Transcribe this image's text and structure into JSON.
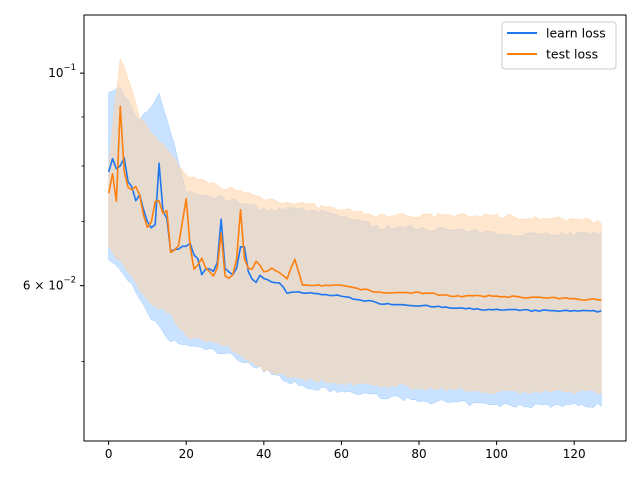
{
  "chart_data": {
    "type": "line",
    "title": "",
    "xlabel": "",
    "ylabel": "",
    "xlim": [
      -6.35,
      133.35
    ],
    "ylim": [
      0.0413,
      0.115
    ],
    "yscale": "log",
    "x_ticks": [
      0,
      20,
      40,
      60,
      80,
      100,
      120
    ],
    "x_tick_labels": [
      "0",
      "20",
      "40",
      "60",
      "80",
      "100",
      "120"
    ],
    "y_major_ticks": [
      0.1,
      0.06
    ],
    "y_major_tick_labels": [
      "10",
      "6 × 10"
    ],
    "y_major_tick_exponents": [
      "−1",
      "−2"
    ],
    "y_minor_ticks": [
      0.05,
      0.07,
      0.08,
      0.09
    ],
    "grid": false,
    "legend_position": "top-right",
    "x_points": 128,
    "series": [
      {
        "name": "learn loss",
        "color": "#1f77f0",
        "band_color": "#9ccbff",
        "mean_keypoints": [
          [
            0,
            0.079
          ],
          [
            1,
            0.0815
          ],
          [
            2,
            0.0795
          ],
          [
            3,
            0.08
          ],
          [
            4,
            0.0815
          ],
          [
            5,
            0.077
          ],
          [
            6,
            0.076
          ],
          [
            7,
            0.0735
          ],
          [
            8,
            0.0745
          ],
          [
            9,
            0.072
          ],
          [
            10,
            0.07
          ],
          [
            11,
            0.069
          ],
          [
            12,
            0.0695
          ],
          [
            13,
            0.0805
          ],
          [
            14,
            0.072
          ],
          [
            15,
            0.0705
          ],
          [
            16,
            0.065
          ],
          [
            17,
            0.0655
          ],
          [
            18,
            0.0655
          ],
          [
            19,
            0.066
          ],
          [
            20,
            0.066
          ],
          [
            21,
            0.0665
          ],
          [
            22,
            0.0645
          ],
          [
            23,
            0.064
          ],
          [
            24,
            0.0615
          ],
          [
            25,
            0.0625
          ],
          [
            26,
            0.0625
          ],
          [
            27,
            0.062
          ],
          [
            28,
            0.0635
          ],
          [
            29,
            0.0705
          ],
          [
            30,
            0.0625
          ],
          [
            31,
            0.062
          ],
          [
            32,
            0.0615
          ],
          [
            33,
            0.0625
          ],
          [
            34,
            0.066
          ],
          [
            35,
            0.066
          ],
          [
            36,
            0.062
          ],
          [
            37,
            0.061
          ],
          [
            38,
            0.0605
          ],
          [
            39,
            0.0615
          ],
          [
            40,
            0.061
          ],
          [
            42,
            0.0605
          ],
          [
            44,
            0.0605
          ],
          [
            46,
            0.059
          ],
          [
            50,
            0.059
          ],
          [
            60,
            0.0585
          ],
          [
            70,
            0.0575
          ],
          [
            80,
            0.0572
          ],
          [
            90,
            0.0568
          ],
          [
            100,
            0.0566
          ],
          [
            110,
            0.0565
          ],
          [
            127,
            0.0564
          ]
        ],
        "mean_noise": 0.004,
        "band_upper_keypoints": [
          [
            0,
            0.095
          ],
          [
            3,
            0.0965
          ],
          [
            8,
            0.089
          ],
          [
            13,
            0.095
          ],
          [
            16,
            0.087
          ],
          [
            20,
            0.075
          ],
          [
            30,
            0.074
          ],
          [
            40,
            0.072
          ],
          [
            50,
            0.072
          ],
          [
            60,
            0.071
          ],
          [
            70,
            0.069
          ],
          [
            80,
            0.069
          ],
          [
            100,
            0.068
          ],
          [
            127,
            0.068
          ]
        ],
        "band_lower_keypoints": [
          [
            0,
            0.064
          ],
          [
            5,
            0.061
          ],
          [
            10,
            0.056
          ],
          [
            16,
            0.0525
          ],
          [
            20,
            0.052
          ],
          [
            30,
            0.051
          ],
          [
            40,
            0.049
          ],
          [
            50,
            0.047
          ],
          [
            60,
            0.0465
          ],
          [
            80,
            0.0455
          ],
          [
            100,
            0.045
          ],
          [
            127,
            0.045
          ]
        ],
        "band_noise": 0.012
      },
      {
        "name": "test loss",
        "color": "#ff7f0e",
        "band_color": "#ffd3a8",
        "mean_keypoints": [
          [
            0,
            0.075
          ],
          [
            1,
            0.0785
          ],
          [
            2,
            0.0735
          ],
          [
            3,
            0.0925
          ],
          [
            4,
            0.079
          ],
          [
            5,
            0.076
          ],
          [
            6,
            0.0755
          ],
          [
            7,
            0.076
          ],
          [
            8,
            0.0745
          ],
          [
            9,
            0.071
          ],
          [
            10,
            0.069
          ],
          [
            11,
            0.07
          ],
          [
            12,
            0.0735
          ],
          [
            13,
            0.0735
          ],
          [
            14,
            0.0715
          ],
          [
            15,
            0.072
          ],
          [
            16,
            0.065
          ],
          [
            17,
            0.0655
          ],
          [
            18,
            0.066
          ],
          [
            19,
            0.07
          ],
          [
            20,
            0.074
          ],
          [
            21,
            0.066
          ],
          [
            22,
            0.0625
          ],
          [
            23,
            0.063
          ],
          [
            24,
            0.064
          ],
          [
            25,
            0.0625
          ],
          [
            26,
            0.062
          ],
          [
            27,
            0.0615
          ],
          [
            28,
            0.0625
          ],
          [
            29,
            0.068
          ],
          [
            30,
            0.0615
          ],
          [
            31,
            0.061
          ],
          [
            32,
            0.0615
          ],
          [
            33,
            0.064
          ],
          [
            34,
            0.072
          ],
          [
            35,
            0.064
          ],
          [
            36,
            0.0625
          ],
          [
            37,
            0.0625
          ],
          [
            38,
            0.0635
          ],
          [
            39,
            0.063
          ],
          [
            40,
            0.062
          ],
          [
            42,
            0.0625
          ],
          [
            44,
            0.062
          ],
          [
            46,
            0.061
          ],
          [
            48,
            0.064
          ],
          [
            50,
            0.06
          ],
          [
            60,
            0.06
          ],
          [
            70,
            0.059
          ],
          [
            80,
            0.059
          ],
          [
            90,
            0.0585
          ],
          [
            100,
            0.0585
          ],
          [
            110,
            0.0583
          ],
          [
            127,
            0.058
          ]
        ],
        "mean_noise": 0.004,
        "band_upper_keypoints": [
          [
            0,
            0.08
          ],
          [
            3,
            0.104
          ],
          [
            8,
            0.09
          ],
          [
            13,
            0.085
          ],
          [
            16,
            0.082
          ],
          [
            20,
            0.078
          ],
          [
            30,
            0.076
          ],
          [
            40,
            0.074
          ],
          [
            50,
            0.073
          ],
          [
            60,
            0.072
          ],
          [
            70,
            0.071
          ],
          [
            80,
            0.071
          ],
          [
            100,
            0.071
          ],
          [
            127,
            0.07
          ]
        ],
        "band_lower_keypoints": [
          [
            0,
            0.066
          ],
          [
            5,
            0.062
          ],
          [
            10,
            0.058
          ],
          [
            16,
            0.056
          ],
          [
            20,
            0.053
          ],
          [
            30,
            0.052
          ],
          [
            40,
            0.049
          ],
          [
            50,
            0.048
          ],
          [
            60,
            0.0475
          ],
          [
            80,
            0.047
          ],
          [
            100,
            0.0465
          ],
          [
            127,
            0.0465
          ]
        ],
        "band_noise": 0.012
      }
    ]
  }
}
